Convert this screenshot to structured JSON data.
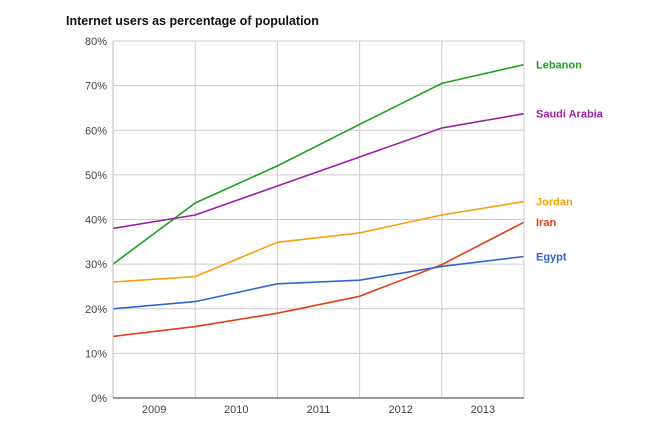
{
  "chart_data": {
    "type": "line",
    "title": "Internet users as percentage of population",
    "xlabel": "",
    "ylabel": "",
    "x": [
      2008.5,
      2009.5,
      2010.5,
      2011.5,
      2012.5,
      2013.5
    ],
    "x_tick_labels": [
      "2009",
      "2010",
      "2011",
      "2012",
      "2013"
    ],
    "y_tick_labels": [
      "0%",
      "10%",
      "20%",
      "30%",
      "40%",
      "50%",
      "60%",
      "70%",
      "80%"
    ],
    "ylim": [
      0,
      80
    ],
    "grid": true,
    "legend": "inline-right",
    "series": [
      {
        "name": "Lebanon",
        "color": "#22a022",
        "values": [
          30,
          43.7,
          52,
          61.3,
          70.5,
          74.7
        ]
      },
      {
        "name": "Saudi Arabia",
        "color": "#9c1fa8",
        "values": [
          38,
          41,
          47.5,
          54,
          60.5,
          63.7
        ]
      },
      {
        "name": "Jordan",
        "color": "#f5a10a",
        "values": [
          26,
          27.2,
          34.9,
          37,
          41,
          44
        ]
      },
      {
        "name": "Iran",
        "color": "#e0411a",
        "values": [
          13.8,
          16,
          19,
          22.8,
          29.9,
          39.4
        ]
      },
      {
        "name": "Egypt",
        "color": "#3366cc",
        "values": [
          20,
          21.6,
          25.6,
          26.4,
          29.5,
          31.7
        ]
      }
    ]
  }
}
